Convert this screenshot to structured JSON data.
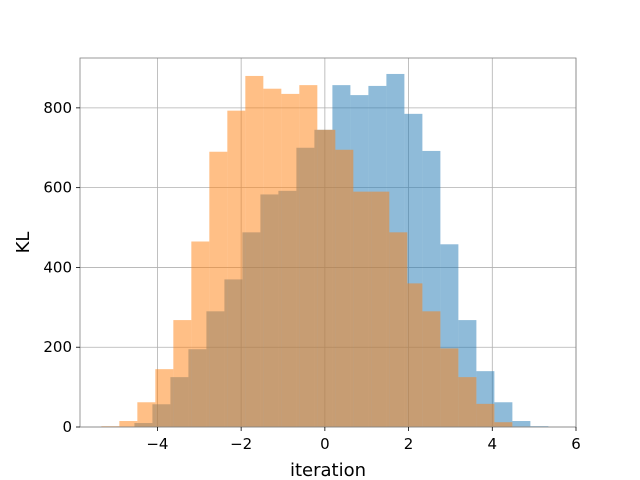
{
  "chart_data": {
    "type": "bar",
    "histogram": true,
    "xlabel": "iteration",
    "ylabel": "KL",
    "xlim": [
      -5.85,
      6.0
    ],
    "ylim": [
      0,
      925
    ],
    "grid": true,
    "xticks": [
      -4,
      -2,
      0,
      2,
      4,
      6
    ],
    "xtick_labels": [
      "−4",
      "−2",
      "0",
      "2",
      "4",
      "6"
    ],
    "yticks": [
      0,
      200,
      400,
      600,
      800
    ],
    "ytick_labels": [
      "0",
      "200",
      "400",
      "600",
      "800"
    ],
    "series": [
      {
        "color": "#1f77b4",
        "alpha": 0.5,
        "bin_edges": [
          -4.98,
          -4.55,
          -4.12,
          -3.69,
          -3.26,
          -2.83,
          -2.4,
          -1.97,
          -1.54,
          -1.11,
          -0.68,
          -0.25,
          0.18,
          0.61,
          1.04,
          1.47,
          1.9,
          2.33,
          2.76,
          3.19,
          3.62,
          4.05,
          4.48,
          4.91,
          5.34
        ],
        "values": [
          1,
          10,
          57,
          125,
          195,
          290,
          370,
          488,
          583,
          592,
          700,
          745,
          857,
          832,
          855,
          885,
          785,
          692,
          458,
          268,
          140,
          62,
          15,
          2
        ]
      },
      {
        "color": "#ff7f0e",
        "alpha": 0.5,
        "bin_edges": [
          -5.34,
          -4.91,
          -4.48,
          -4.05,
          -3.62,
          -3.19,
          -2.76,
          -2.33,
          -1.9,
          -1.47,
          -1.04,
          -0.61,
          -0.18,
          0.25,
          0.68,
          1.11,
          1.54,
          1.97,
          2.33,
          2.76,
          3.19,
          3.62,
          4.05,
          4.48,
          4.91
        ],
        "values": [
          2,
          15,
          62,
          145,
          268,
          465,
          690,
          793,
          880,
          848,
          835,
          857,
          745,
          695,
          590,
          590,
          488,
          360,
          290,
          197,
          125,
          58,
          12,
          1
        ]
      }
    ]
  }
}
